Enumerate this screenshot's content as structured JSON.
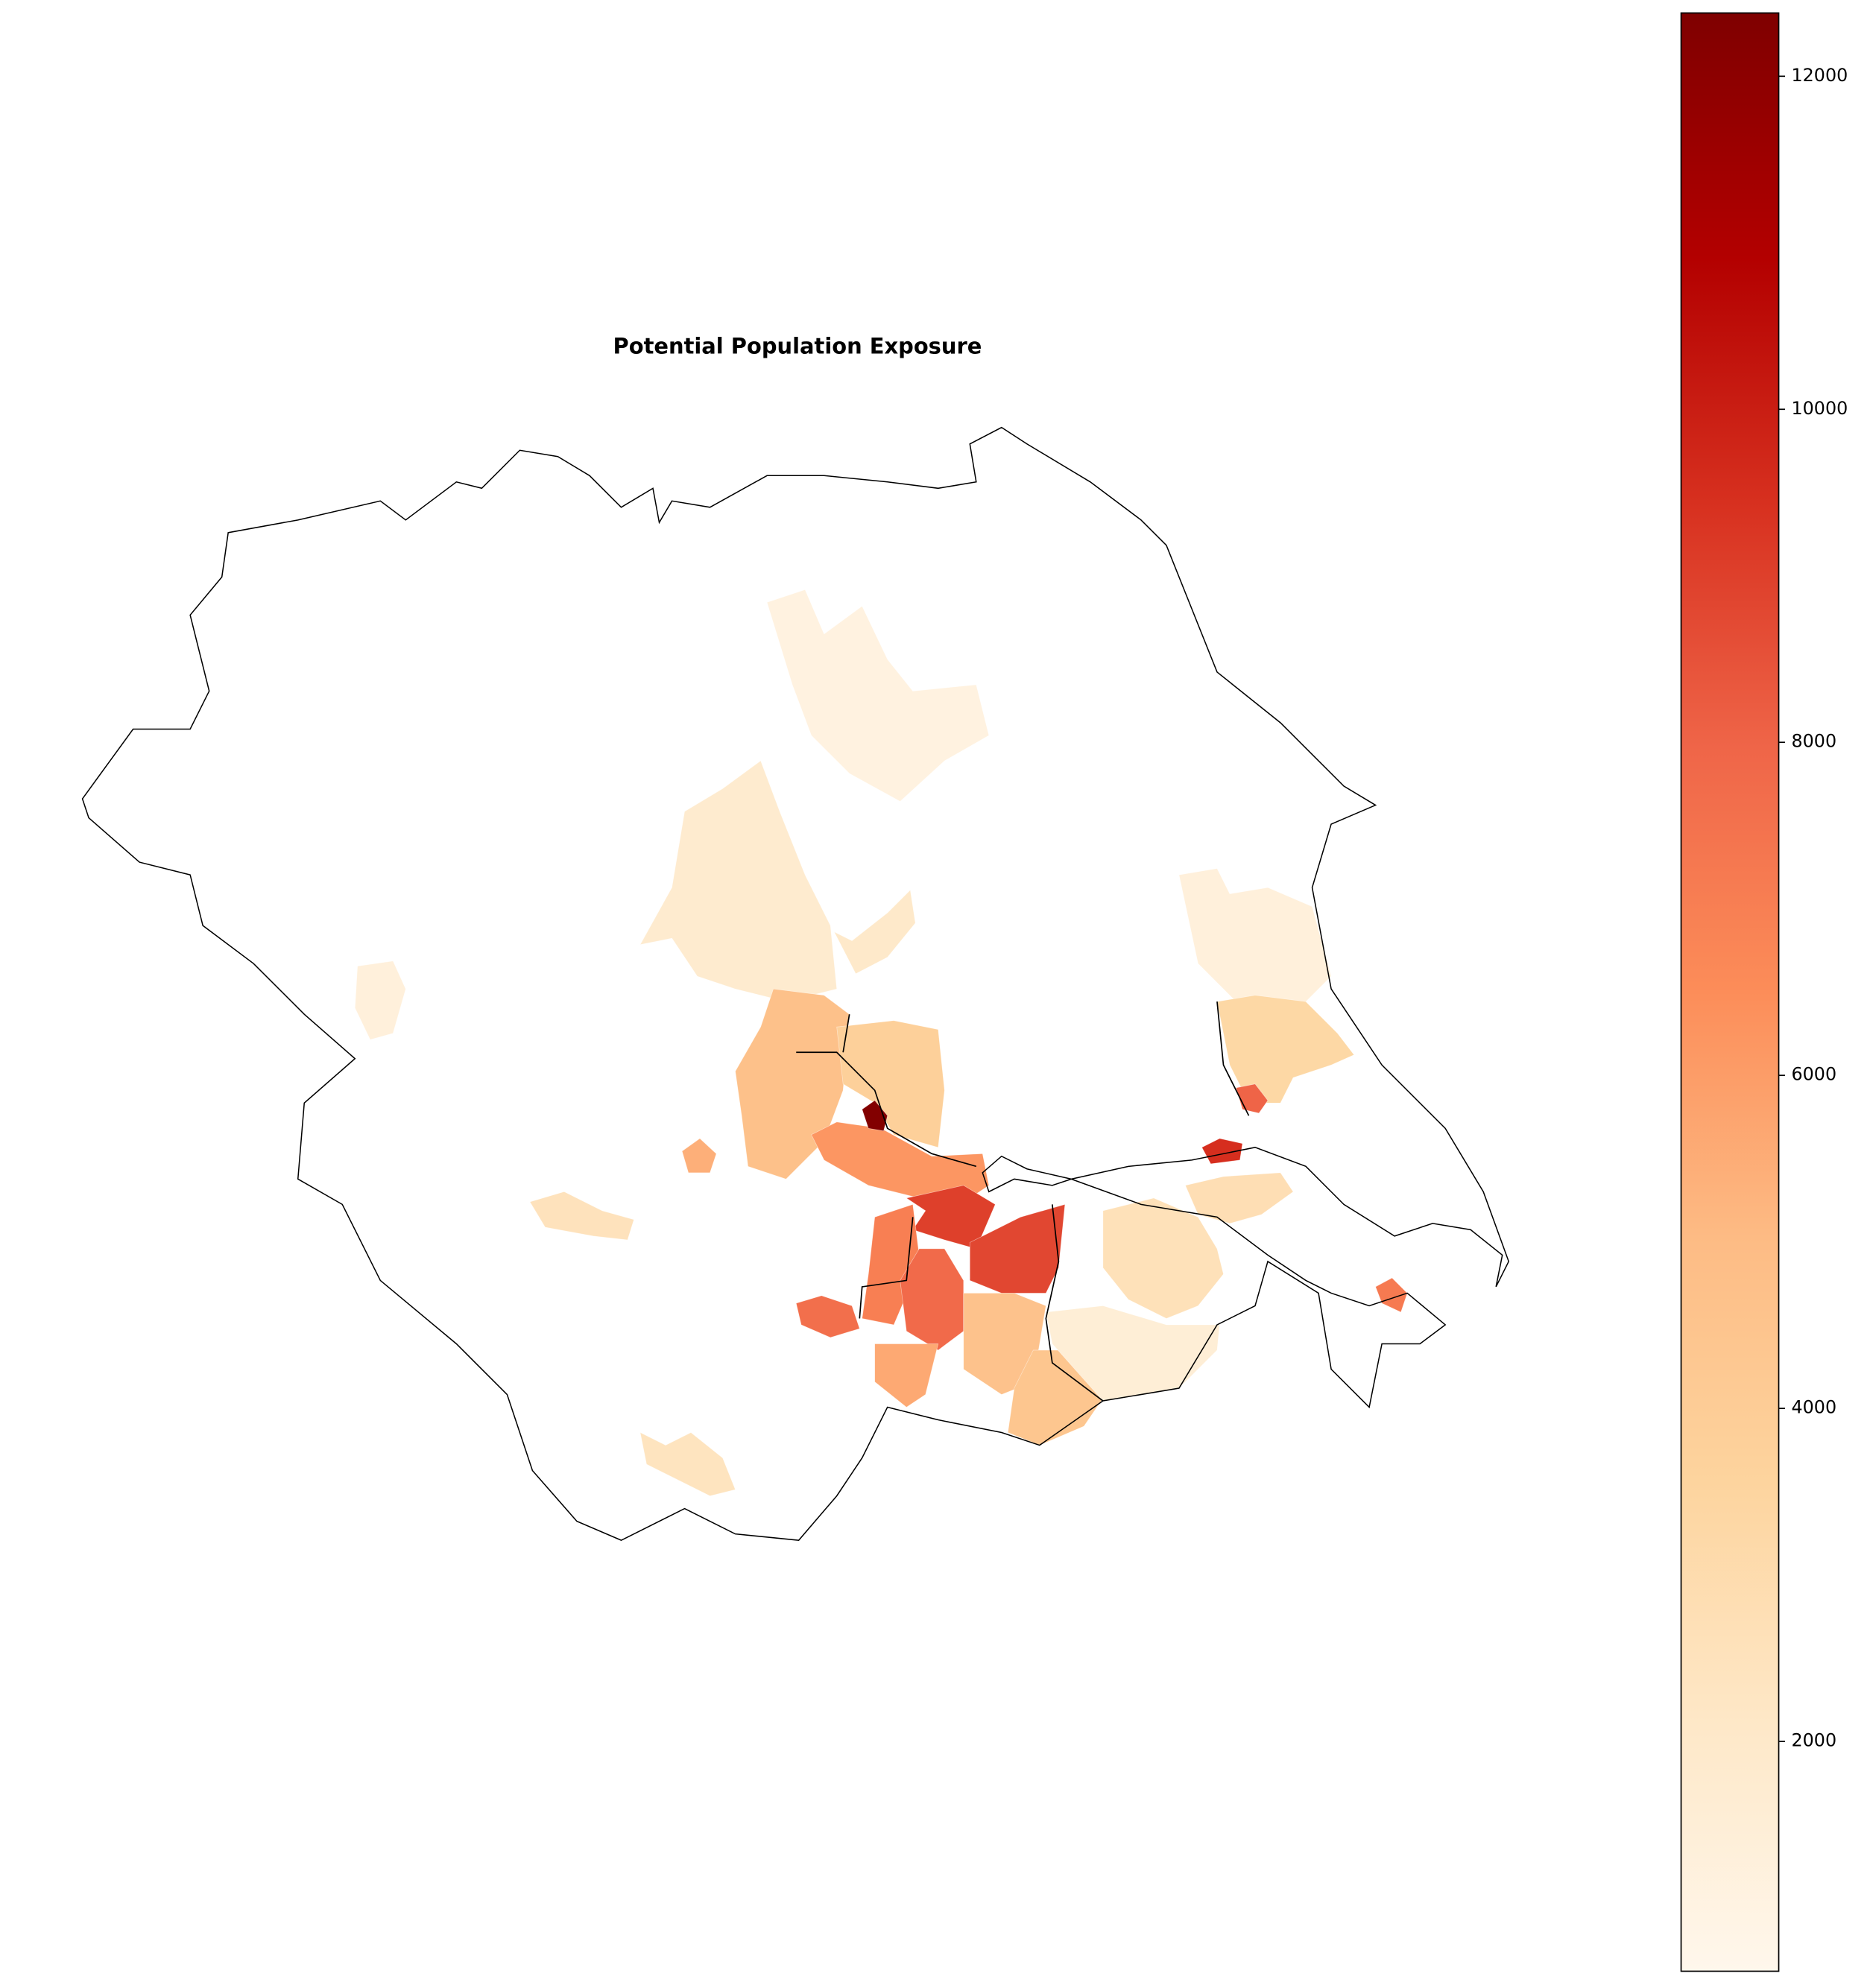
{
  "chart_data": {
    "type": "choropleth",
    "title": "Potential Population Exposure",
    "values": [
      1100,
      1800,
      1300,
      3300,
      4700,
      3800,
      6200,
      9000,
      7000,
      7800,
      8800,
      4600,
      4400,
      5600,
      12300,
      2600,
      2800,
      1500,
      9500,
      8000,
      7200,
      7600,
      1300,
      2400,
      5400,
      2500,
      2000
    ],
    "clim": [
      620,
      12380
    ],
    "cticks": [
      2000,
      4000,
      6000,
      8000,
      10000,
      12000
    ],
    "colormap": [
      "#fff7ec",
      "#fee8c8",
      "#fdd49e",
      "#fdbb84",
      "#fc8d59",
      "#ef6548",
      "#d7301f",
      "#b30000",
      "#7f0000"
    ]
  }
}
